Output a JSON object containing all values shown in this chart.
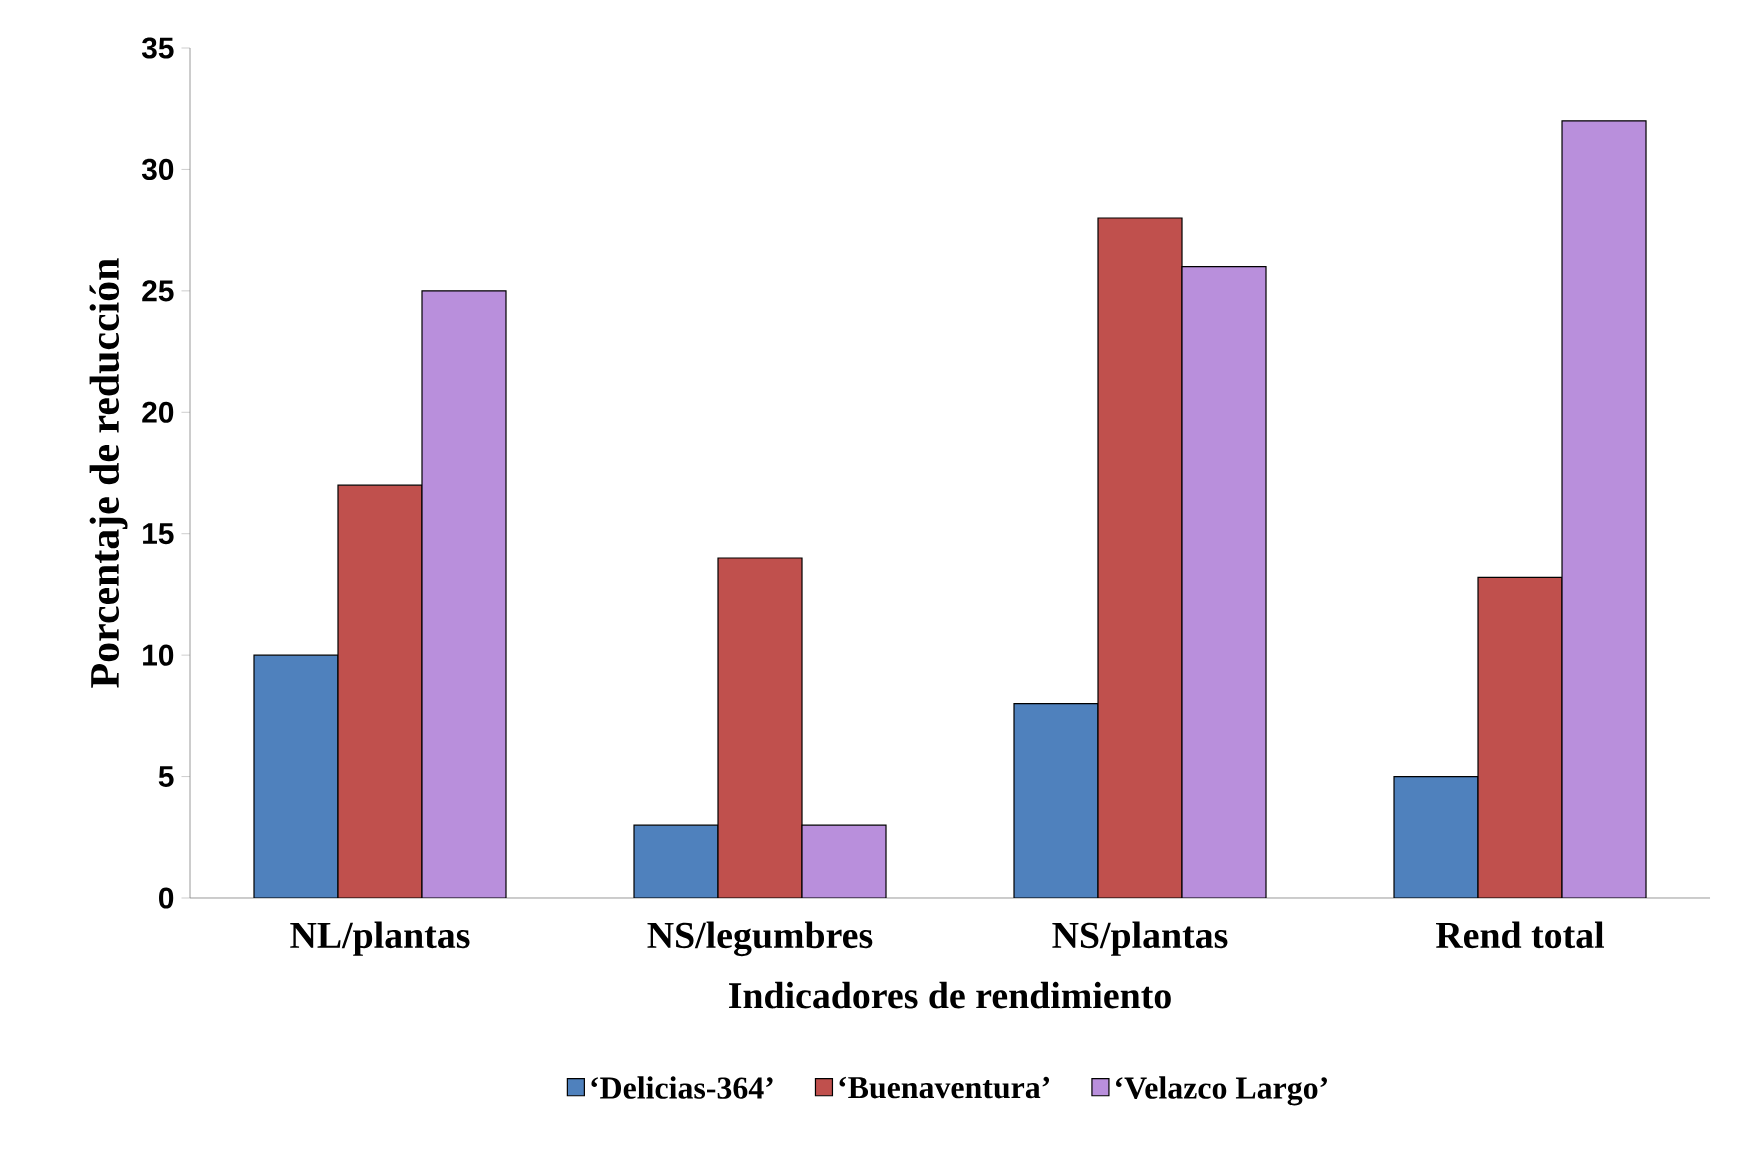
{
  "chart_data": {
    "type": "bar",
    "xlabel": "Indicadores de rendimiento",
    "ylabel": "Porcentaje de reducción",
    "categories": [
      "NL/plantas",
      "NS/legumbres",
      "NS/plantas",
      "Rend total"
    ],
    "series": [
      {
        "name": "‘Delicias-364’",
        "color": "#4f81bd",
        "values": [
          10,
          3,
          8,
          5
        ]
      },
      {
        "name": "‘Buenaventura’",
        "color": "#c0504d",
        "values": [
          17,
          14,
          28,
          13.2
        ]
      },
      {
        "name": "‘Velazco Largo’",
        "color": "#b98fdc",
        "values": [
          25,
          3,
          26,
          32
        ]
      }
    ],
    "ylim": [
      0,
      35
    ],
    "yticks": [
      0,
      5,
      10,
      15,
      20,
      25,
      30,
      35
    ],
    "grid": false,
    "legend": "bottom"
  }
}
